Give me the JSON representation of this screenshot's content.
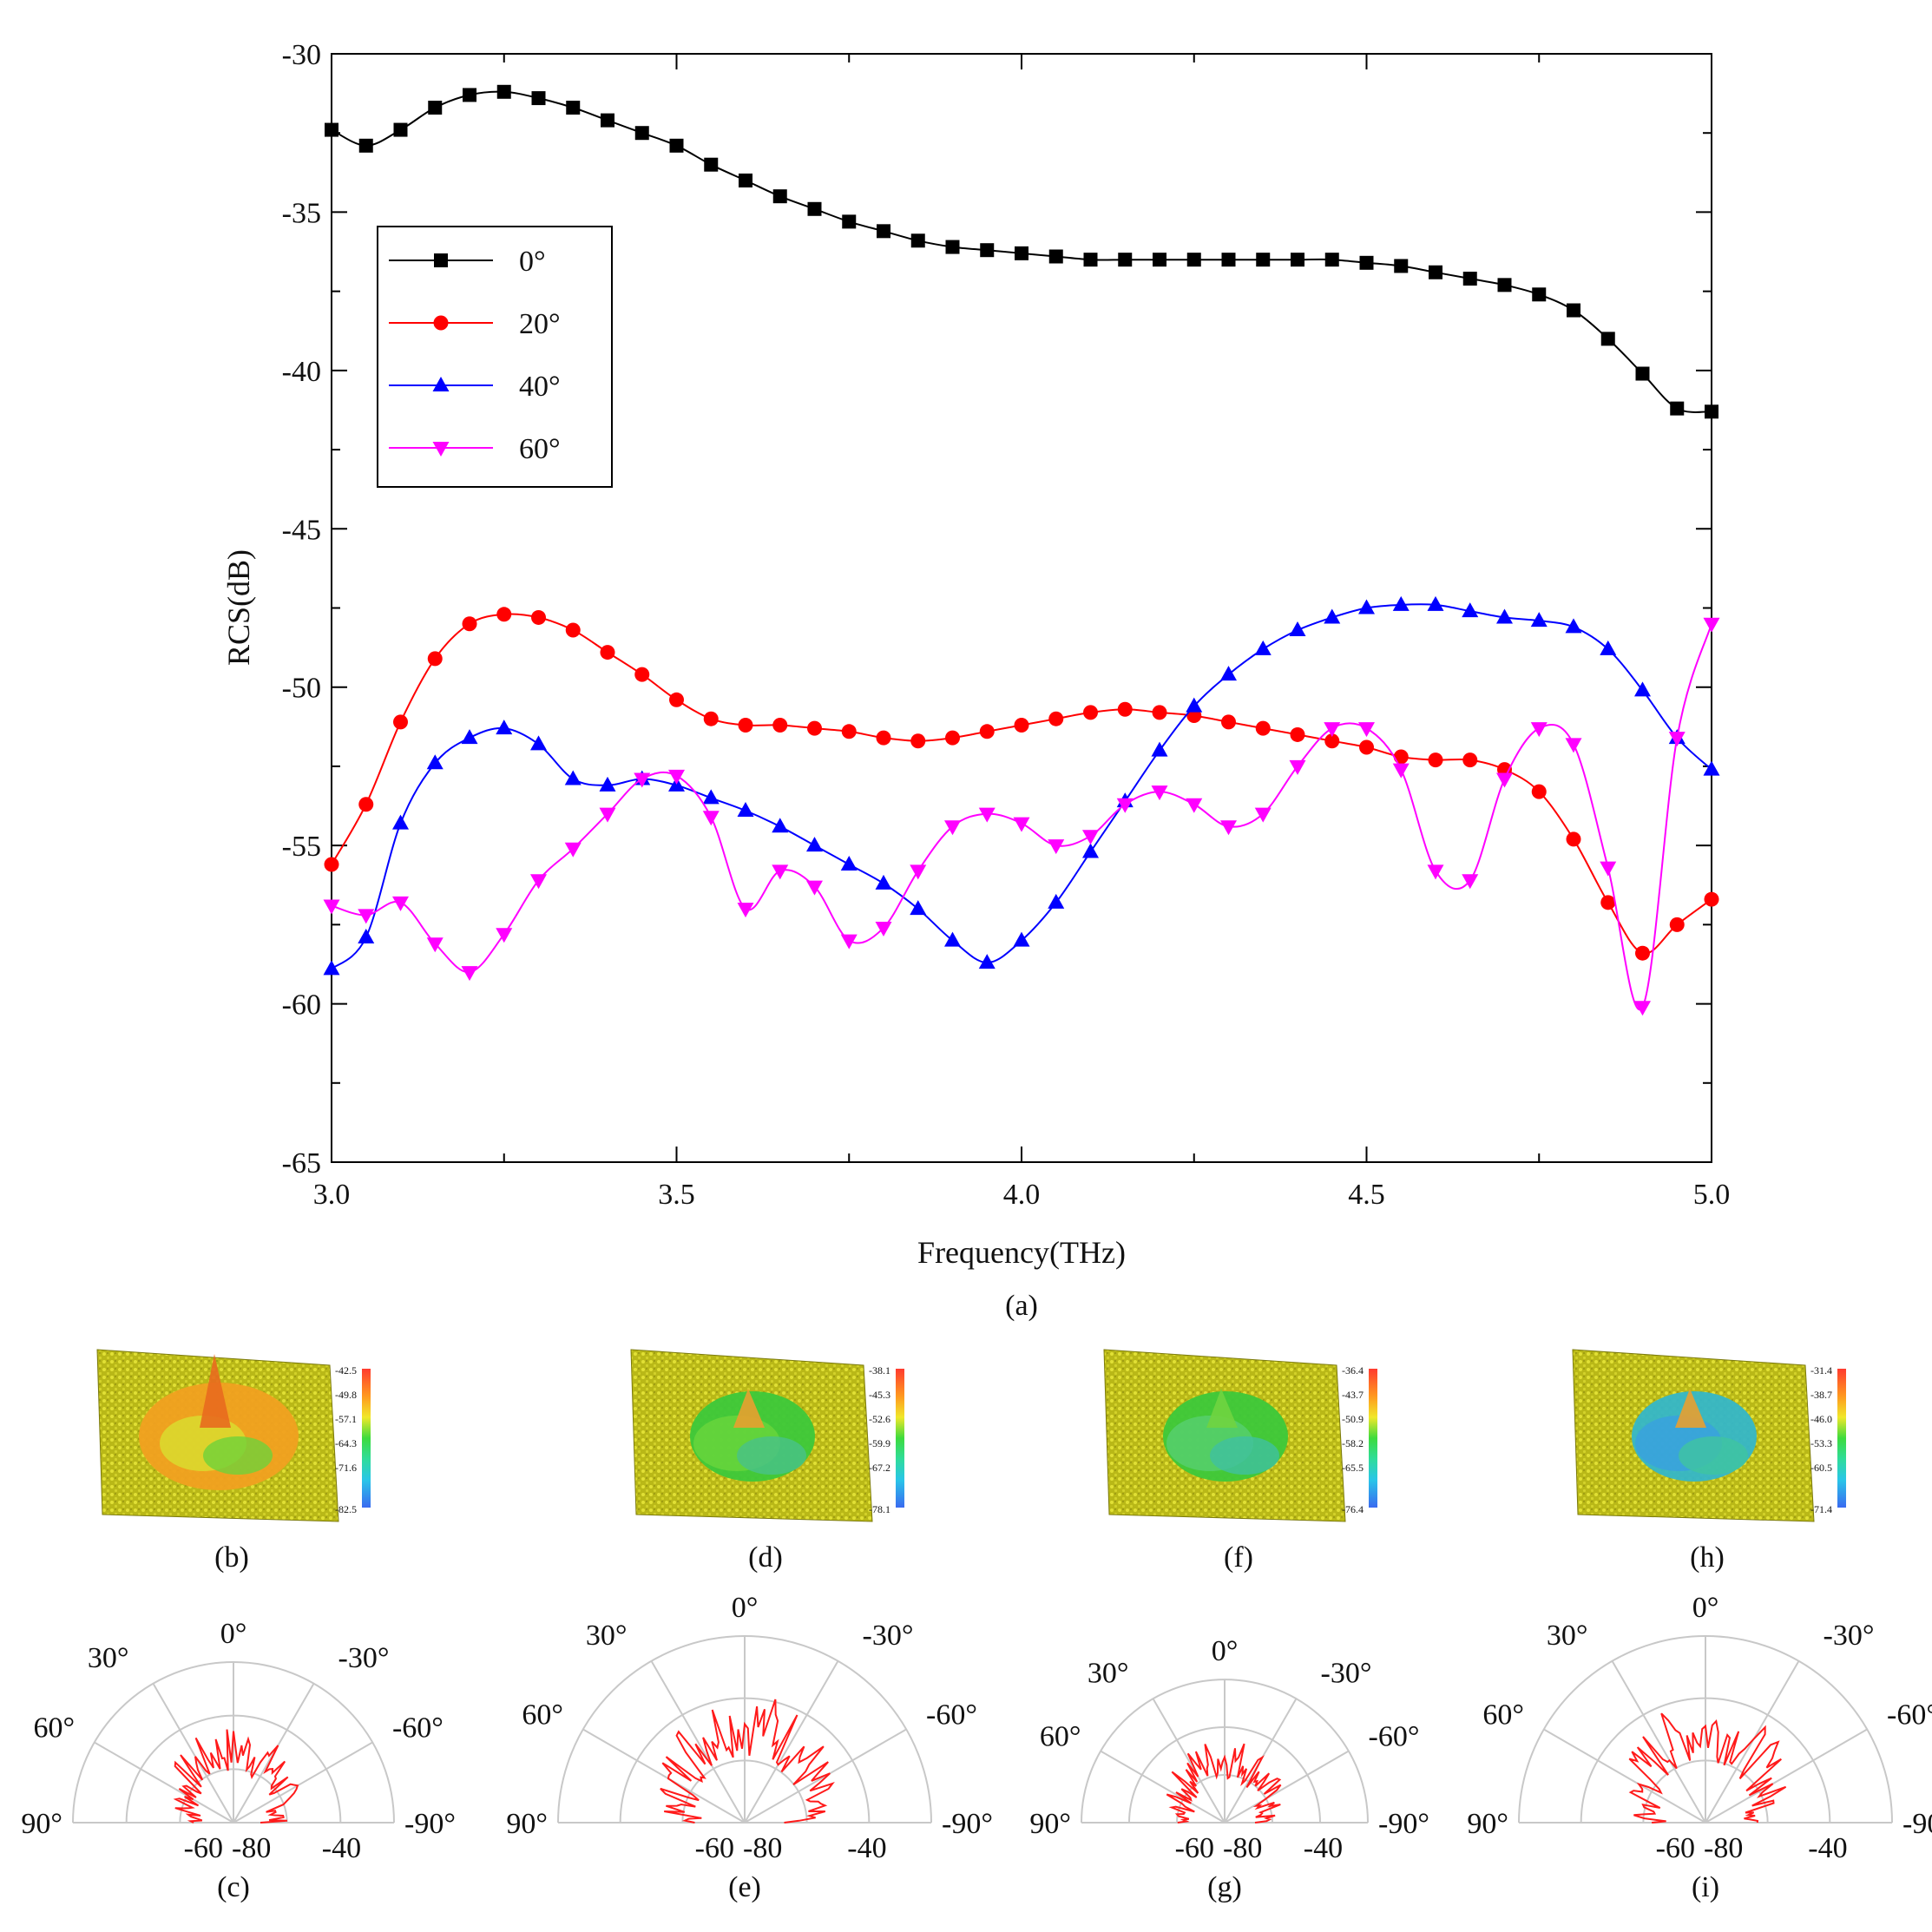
{
  "chart_data": {
    "type": "line",
    "x_step": 0.05,
    "xlim": [
      3.0,
      5.0
    ],
    "ylim": [
      -65,
      -30
    ],
    "x_ticks": [
      3.0,
      3.5,
      4.0,
      4.5,
      5.0
    ],
    "x_tick_labels": [
      "3.0",
      "3.5",
      "4.0",
      "4.5",
      "5.0"
    ],
    "y_ticks": [
      -30,
      -35,
      -40,
      -45,
      -50,
      -55,
      -60,
      -65
    ],
    "y_tick_labels": [
      "-30",
      "-35",
      "-40",
      "-45",
      "-50",
      "-55",
      "-60",
      "-65"
    ],
    "xlabel": "Frequency(THz)",
    "ylabel": "RCS(dB)",
    "caption": "(a)",
    "legend_position": "top-left",
    "series": [
      {
        "name": "0°",
        "color": "#000000",
        "marker": "square",
        "values": [
          -32.4,
          -32.9,
          -32.4,
          -31.7,
          -31.3,
          -31.2,
          -31.4,
          -31.7,
          -32.1,
          -32.5,
          -32.9,
          -33.5,
          -34.0,
          -34.5,
          -34.9,
          -35.3,
          -35.6,
          -35.9,
          -36.1,
          -36.2,
          -36.3,
          -36.4,
          -36.5,
          -36.5,
          -36.5,
          -36.5,
          -36.5,
          -36.5,
          -36.5,
          -36.5,
          -36.6,
          -36.7,
          -36.9,
          -37.1,
          -37.3,
          -37.6,
          -38.1,
          -39.0,
          -40.1,
          -41.2,
          -41.3
        ]
      },
      {
        "name": "20°",
        "color": "#ff0000",
        "marker": "circle",
        "values": [
          -55.6,
          -53.7,
          -51.1,
          -49.1,
          -48.0,
          -47.7,
          -47.8,
          -48.2,
          -48.9,
          -49.6,
          -50.4,
          -51.0,
          -51.2,
          -51.2,
          -51.3,
          -51.4,
          -51.6,
          -51.7,
          -51.6,
          -51.4,
          -51.2,
          -51.0,
          -50.8,
          -50.7,
          -50.8,
          -50.9,
          -51.1,
          -51.3,
          -51.5,
          -51.7,
          -51.9,
          -52.2,
          -52.3,
          -52.3,
          -52.6,
          -53.3,
          -54.8,
          -56.8,
          -58.4,
          -57.5,
          -56.7
        ]
      },
      {
        "name": "40°",
        "color": "#0000ff",
        "marker": "triangle-up",
        "values": [
          -58.9,
          -57.9,
          -54.3,
          -52.4,
          -51.6,
          -51.3,
          -51.8,
          -52.9,
          -53.1,
          -52.9,
          -53.1,
          -53.5,
          -53.9,
          -54.4,
          -55.0,
          -55.6,
          -56.2,
          -57.0,
          -58.0,
          -58.7,
          -58.0,
          -56.8,
          -55.2,
          -53.6,
          -52.0,
          -50.6,
          -49.6,
          -48.8,
          -48.2,
          -47.8,
          -47.5,
          -47.4,
          -47.4,
          -47.6,
          -47.8,
          -47.9,
          -48.1,
          -48.8,
          -50.1,
          -51.6,
          -52.6
        ]
      },
      {
        "name": "60°",
        "color": "#ff00ff",
        "marker": "triangle-down",
        "values": [
          -56.9,
          -57.2,
          -56.8,
          -58.1,
          -59.0,
          -57.8,
          -56.1,
          -55.1,
          -54.0,
          -52.9,
          -52.8,
          -54.1,
          -57.0,
          -55.8,
          -56.3,
          -58.0,
          -57.6,
          -55.8,
          -54.4,
          -54.0,
          -54.3,
          -55.0,
          -54.7,
          -53.7,
          -53.3,
          -53.7,
          -54.4,
          -54.0,
          -52.5,
          -51.3,
          -51.3,
          -52.6,
          -55.8,
          -56.1,
          -52.9,
          -51.3,
          -51.8,
          -55.7,
          -60.1,
          -51.6,
          -48.0
        ]
      }
    ]
  },
  "panels": [
    {
      "surface_caption": "(b)",
      "polar_caption": "(c)",
      "scale_labels": [
        "-42.5",
        "-49.8",
        "-57.1",
        "-64.3",
        "-71.6",
        "-82.5"
      ]
    },
    {
      "surface_caption": "(d)",
      "polar_caption": "(e)",
      "scale_labels": [
        "-38.1",
        "-45.3",
        "-52.6",
        "-59.9",
        "-67.2",
        "-78.1"
      ]
    },
    {
      "surface_caption": "(f)",
      "polar_caption": "(g)",
      "scale_labels": [
        "-36.4",
        "-43.7",
        "-50.9",
        "-58.2",
        "-65.5",
        "-76.4"
      ]
    },
    {
      "surface_caption": "(h)",
      "polar_caption": "(i)",
      "scale_labels": [
        "-31.4",
        "-38.7",
        "-46.0",
        "-53.3",
        "-60.5",
        "-71.4"
      ]
    }
  ],
  "polar_axes": {
    "angle_labels": [
      "0°",
      "30°",
      "-30°",
      "60°",
      "-60°",
      "90°",
      "-90°"
    ],
    "radial_labels": [
      "-60",
      "-80",
      "-40"
    ]
  }
}
